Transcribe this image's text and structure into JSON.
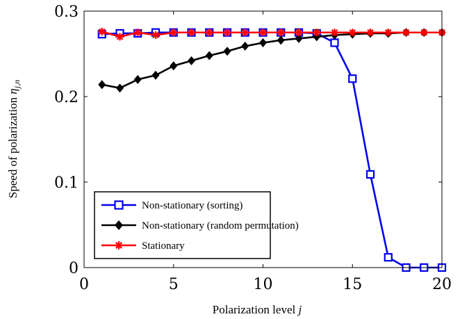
{
  "chart_data": {
    "type": "line",
    "xlabel": "Polarization level",
    "xlabel_var": "j",
    "ylabel": "Speed of polarization",
    "ylabel_var": "η",
    "ylabel_sub": "j,n",
    "xlim": [
      0,
      20
    ],
    "ylim": [
      0,
      0.3
    ],
    "xticks": [
      0,
      5,
      10,
      15,
      20
    ],
    "yticks": [
      0,
      0.1,
      0.2,
      0.3
    ],
    "xtick_labels": [
      "0",
      "5",
      "10",
      "15",
      "20"
    ],
    "ytick_labels": [
      "0",
      "0.1",
      "0.2",
      "0.3"
    ],
    "grid": false,
    "legend_position": "lower-left",
    "x": [
      1,
      2,
      3,
      4,
      5,
      6,
      7,
      8,
      9,
      10,
      11,
      12,
      13,
      14,
      15,
      16,
      17,
      18,
      19,
      20
    ],
    "series": [
      {
        "name": "Non-stationary (sorting)",
        "color": "#0000ee",
        "marker": "square",
        "values": [
          0.273,
          0.274,
          0.274,
          0.275,
          0.275,
          0.275,
          0.275,
          0.275,
          0.275,
          0.275,
          0.275,
          0.275,
          0.274,
          0.263,
          0.221,
          0.109,
          0.012,
          0.0,
          0.0,
          0.0
        ]
      },
      {
        "name": "Non-stationary (random permutation)",
        "color": "#000000",
        "marker": "diamond",
        "values": [
          0.214,
          0.21,
          0.22,
          0.225,
          0.236,
          0.242,
          0.248,
          0.253,
          0.259,
          0.263,
          0.266,
          0.268,
          0.27,
          0.272,
          0.273,
          0.274,
          0.274,
          0.275,
          0.275,
          0.275
        ]
      },
      {
        "name": "Stationary",
        "color": "#ff0000",
        "marker": "star",
        "values": [
          0.276,
          0.27,
          0.275,
          0.272,
          0.275,
          0.275,
          0.275,
          0.275,
          0.275,
          0.275,
          0.275,
          0.275,
          0.275,
          0.275,
          0.275,
          0.275,
          0.275,
          0.275,
          0.275,
          0.275
        ]
      }
    ]
  }
}
